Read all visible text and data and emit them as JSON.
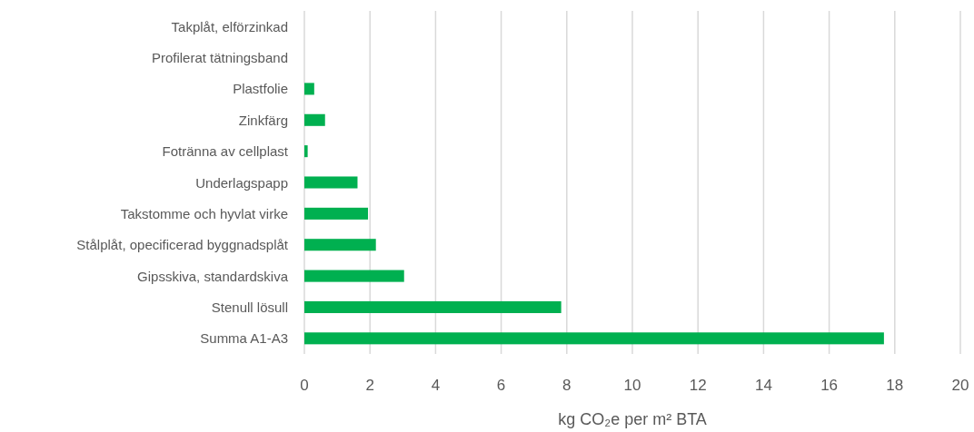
{
  "chart_data": {
    "type": "bar",
    "orientation": "horizontal",
    "xlabel": "kg CO₂e per m² BTA",
    "categories": [
      "Takplåt, elförzinkad",
      "Profilerat tätningsband",
      "Plastfolie",
      "Zinkfärg",
      "Fotränna av cellplast",
      "Underlagspapp",
      "Takstomme och hyvlat virke",
      "Stålplåt, opecificerad byggnadsplåt",
      "Gipsskiva, standardskiva",
      "Stenull lösull",
      "Summa A1-A3"
    ],
    "values": [
      0,
      0,
      0.3,
      0.63,
      0.1,
      1.62,
      1.94,
      2.18,
      3.04,
      7.83,
      17.67
    ],
    "color": "#00b050",
    "xlim": [
      0,
      20
    ],
    "xticks": [
      0,
      2,
      4,
      6,
      8,
      10,
      12,
      14,
      16,
      18,
      20
    ],
    "grid": "x"
  }
}
